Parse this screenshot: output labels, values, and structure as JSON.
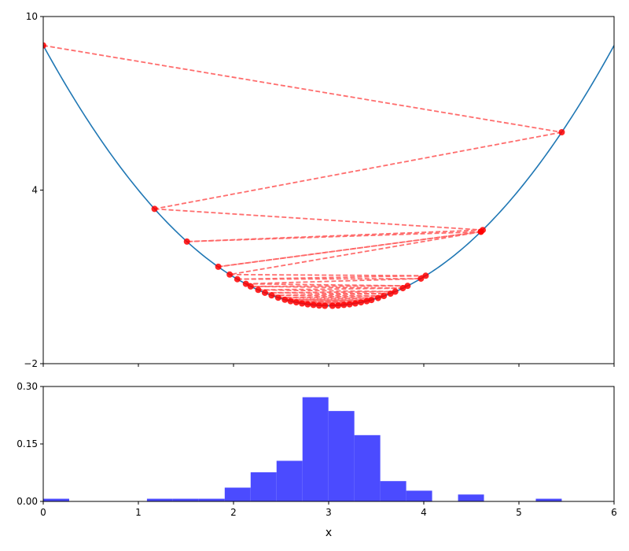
{
  "chart_data": [
    {
      "type": "line",
      "title": "",
      "xlabel": "",
      "ylabel": "",
      "xlim": [
        0,
        6
      ],
      "ylim": [
        -2,
        10
      ],
      "x_ticks": [
        0,
        1,
        2,
        3,
        4,
        5,
        6
      ],
      "x_tick_labels": [
        "",
        "",
        "",
        "",
        "",
        "",
        ""
      ],
      "y_ticks": [
        -2,
        4,
        10
      ],
      "y_tick_labels": [
        "−2",
        "4",
        "10"
      ],
      "grid": false,
      "legend": "none",
      "curve": {
        "function": "(x - 3)^2",
        "x_range": [
          0,
          6
        ],
        "color": "#1f77b4"
      },
      "iterate_color": "#ff0000",
      "connector_color": "#ff6666",
      "iterates": [
        {
          "x": 0.0,
          "y": 9.0
        },
        {
          "x": 5.45,
          "y": 6.0
        },
        {
          "x": 1.17,
          "y": 3.35
        },
        {
          "x": 4.62,
          "y": 2.62
        },
        {
          "x": 1.51,
          "y": 2.22
        },
        {
          "x": 4.6,
          "y": 2.56
        },
        {
          "x": 1.84,
          "y": 1.35
        },
        {
          "x": 4.6,
          "y": 2.56
        },
        {
          "x": 1.96,
          "y": 1.08
        },
        {
          "x": 4.02,
          "y": 1.04
        },
        {
          "x": 2.04,
          "y": 0.92
        },
        {
          "x": 3.97,
          "y": 0.94
        },
        {
          "x": 2.13,
          "y": 0.76
        },
        {
          "x": 3.83,
          "y": 0.69
        },
        {
          "x": 2.18,
          "y": 0.67
        },
        {
          "x": 3.78,
          "y": 0.61
        },
        {
          "x": 2.26,
          "y": 0.55
        },
        {
          "x": 3.7,
          "y": 0.49
        },
        {
          "x": 2.33,
          "y": 0.45
        },
        {
          "x": 3.65,
          "y": 0.42
        },
        {
          "x": 2.4,
          "y": 0.36
        },
        {
          "x": 3.58,
          "y": 0.34
        },
        {
          "x": 2.47,
          "y": 0.28
        },
        {
          "x": 3.52,
          "y": 0.27
        },
        {
          "x": 2.54,
          "y": 0.21
        },
        {
          "x": 3.45,
          "y": 0.2
        },
        {
          "x": 2.6,
          "y": 0.16
        },
        {
          "x": 3.4,
          "y": 0.16
        },
        {
          "x": 2.66,
          "y": 0.12
        },
        {
          "x": 3.34,
          "y": 0.12
        },
        {
          "x": 2.72,
          "y": 0.08
        },
        {
          "x": 3.28,
          "y": 0.08
        },
        {
          "x": 2.78,
          "y": 0.05
        },
        {
          "x": 3.22,
          "y": 0.05
        },
        {
          "x": 2.84,
          "y": 0.03
        },
        {
          "x": 3.16,
          "y": 0.03
        },
        {
          "x": 2.9,
          "y": 0.01
        },
        {
          "x": 3.1,
          "y": 0.01
        },
        {
          "x": 2.96,
          "y": 0.0
        },
        {
          "x": 3.04,
          "y": 0.0
        }
      ]
    },
    {
      "type": "bar",
      "title": "",
      "xlabel": "x",
      "ylabel": "",
      "xlim": [
        0,
        6
      ],
      "ylim": [
        0,
        0.3
      ],
      "x_ticks": [
        0,
        1,
        2,
        3,
        4,
        5,
        6
      ],
      "x_tick_labels": [
        "0",
        "1",
        "2",
        "3",
        "4",
        "5",
        "6"
      ],
      "y_ticks": [
        0.0,
        0.15,
        0.3
      ],
      "y_tick_labels": [
        "0.00",
        "0.15",
        "0.30"
      ],
      "grid": false,
      "legend": "none",
      "color": "#4b4bff",
      "bin_width": 0.2725,
      "bins": [
        {
          "start": 0.0,
          "value": 0.007
        },
        {
          "start": 1.09,
          "value": 0.007
        },
        {
          "start": 1.3625,
          "value": 0.007
        },
        {
          "start": 1.635,
          "value": 0.007
        },
        {
          "start": 1.9075,
          "value": 0.036
        },
        {
          "start": 2.18,
          "value": 0.076
        },
        {
          "start": 2.4525,
          "value": 0.106
        },
        {
          "start": 2.725,
          "value": 0.272
        },
        {
          "start": 2.9975,
          "value": 0.236
        },
        {
          "start": 3.27,
          "value": 0.173
        },
        {
          "start": 3.5425,
          "value": 0.053
        },
        {
          "start": 3.815,
          "value": 0.028
        },
        {
          "start": 4.36,
          "value": 0.018
        },
        {
          "start": 5.1775,
          "value": 0.007
        }
      ]
    }
  ]
}
